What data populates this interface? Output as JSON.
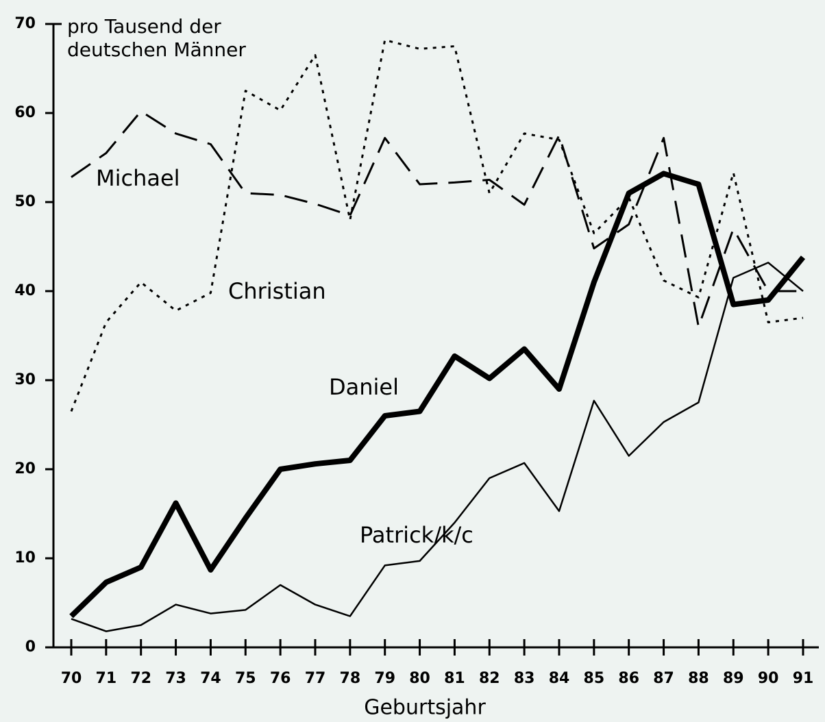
{
  "chart_data": {
    "type": "line",
    "ylabel": [
      "pro Tausend der",
      "deutschen Männer"
    ],
    "xlabel": "Geburtsjahr",
    "x": [
      70,
      71,
      72,
      73,
      74,
      75,
      76,
      77,
      78,
      79,
      80,
      81,
      82,
      83,
      84,
      85,
      86,
      87,
      88,
      89,
      90,
      91
    ],
    "xlim": [
      70,
      91
    ],
    "xticks": [
      70,
      71,
      72,
      73,
      74,
      75,
      76,
      77,
      78,
      79,
      80,
      81,
      82,
      83,
      84,
      85,
      86,
      87,
      88,
      89,
      90,
      91
    ],
    "ylim": [
      0,
      70
    ],
    "yticks": [
      0,
      10,
      20,
      30,
      40,
      50,
      60,
      70
    ],
    "series": [
      {
        "name": "Michael",
        "color": "#000",
        "width": 3,
        "dash": "34 16",
        "values": [
          52.8,
          55.5,
          60.2,
          57.7,
          56.5,
          51,
          50.8,
          49.8,
          48.5,
          57.2,
          52,
          52.2,
          52.5,
          49.7,
          57.5,
          44.8,
          47.5,
          57.2,
          36,
          47,
          40,
          40
        ]
      },
      {
        "name": "Christian",
        "color": "#000",
        "width": 3,
        "dash": "5 8",
        "values": [
          26.5,
          36.5,
          41,
          37.8,
          39.8,
          62.5,
          60.3,
          66.5,
          48,
          68.2,
          67.2,
          67.5,
          51,
          57.7,
          57,
          46.5,
          50.5,
          41.2,
          39.3,
          53.3,
          36.5,
          37
        ]
      },
      {
        "name": "Daniel",
        "color": "#000",
        "width": 8,
        "dash": "none",
        "values": [
          3.5,
          7.3,
          9,
          16.2,
          8.7,
          14.5,
          20,
          20.6,
          21,
          26,
          26.5,
          32.7,
          30.2,
          33.5,
          29,
          41,
          51,
          53.2,
          52,
          38.5,
          39,
          43.8
        ]
      },
      {
        "name": "Patrick/k/c",
        "color": "#000",
        "width": 2.5,
        "dash": "none",
        "values": [
          3.2,
          1.8,
          2.5,
          4.8,
          3.8,
          4.2,
          7,
          4.8,
          3.5,
          9.2,
          9.7,
          14,
          19,
          20.7,
          15.3,
          27.7,
          21.5,
          25.3,
          27.5,
          41.5,
          43.2,
          40
        ]
      }
    ]
  }
}
